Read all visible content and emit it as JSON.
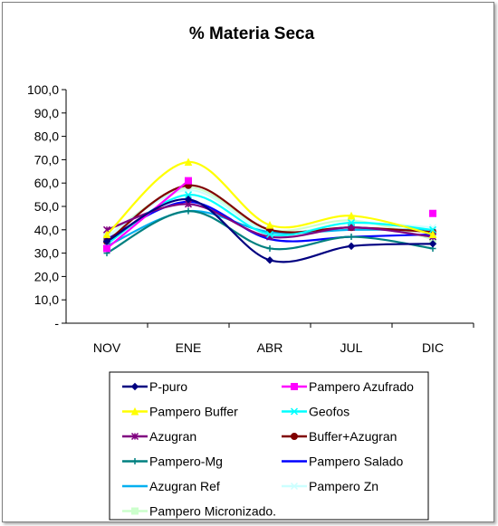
{
  "chart_data": {
    "type": "line",
    "title": "% Materia Seca",
    "xlabel": "",
    "ylabel": "",
    "categories": [
      "NOV",
      "ENE",
      "ABR",
      "JUL",
      "DIC"
    ],
    "y_tick_labels": [
      "-",
      "10,0",
      "20,0",
      "30,0",
      "40,0",
      "50,0",
      "60,0",
      "70,0",
      "80,0",
      "90,0",
      "100,0"
    ],
    "ylim": [
      0,
      100
    ],
    "grid": false,
    "legend_position": "bottom",
    "series": [
      {
        "name": "P-puro",
        "color": "#000080",
        "marker": "diamond",
        "values": [
          35,
          53,
          27,
          33,
          34
        ]
      },
      {
        "name": "Pampero Azufrado",
        "color": "#ff00ff",
        "marker": "square",
        "values": [
          32,
          61,
          null,
          null,
          47
        ]
      },
      {
        "name": "Pampero Buffer",
        "color": "#ffff00",
        "marker": "triangle",
        "values": [
          38,
          69,
          42,
          46,
          38
        ]
      },
      {
        "name": "Geofos",
        "color": "#00ffff",
        "marker": "x",
        "values": [
          34,
          55,
          38,
          43,
          40
        ]
      },
      {
        "name": "Azugran",
        "color": "#800080",
        "marker": "star",
        "values": [
          40,
          51,
          37,
          41,
          37
        ]
      },
      {
        "name": "Buffer+Azugran",
        "color": "#800000",
        "marker": "circle",
        "values": [
          35,
          59,
          40,
          41,
          39
        ]
      },
      {
        "name": "Pampero-Mg",
        "color": "#008080",
        "marker": "plus",
        "values": [
          30,
          48,
          32,
          37,
          32
        ]
      },
      {
        "name": "Pampero Salado",
        "color": "#0000ff",
        "marker": "dash",
        "values": [
          36,
          52,
          36,
          37,
          38
        ]
      },
      {
        "name": "Azugran Ref",
        "color": "#00b0f0",
        "marker": "dash",
        "values": [
          33,
          48,
          39,
          40,
          40
        ]
      },
      {
        "name": "Pampero Zn",
        "color": "#ccffff",
        "marker": "x",
        "values": [
          37,
          57,
          39,
          43,
          41
        ]
      },
      {
        "name": "Pampero Micronizado.",
        "color": "#ccffcc",
        "marker": "square",
        "values": [
          37,
          58,
          40,
          44,
          36
        ]
      }
    ]
  }
}
